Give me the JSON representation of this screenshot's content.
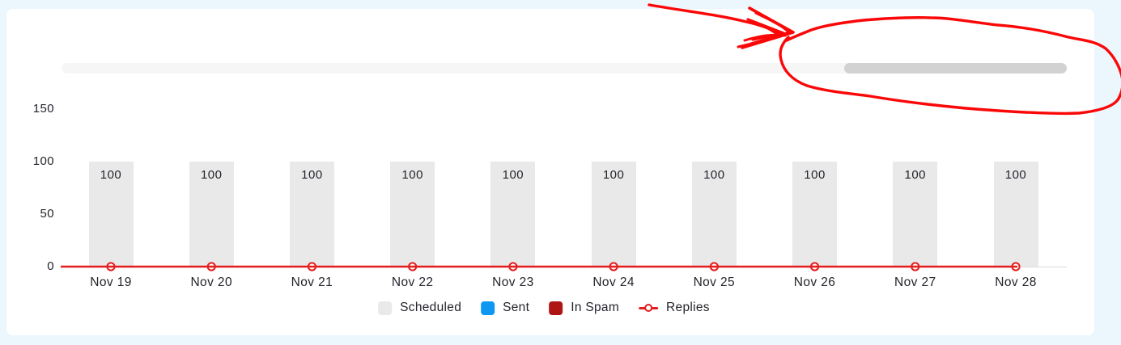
{
  "colors": {
    "page_bg": "#ecf6fd",
    "panel_bg": "#ffffff",
    "bar_fill": "#e9e9e9",
    "axis_line": "#dcdcdc",
    "text": "#23242c",
    "scroll_track": "#f6f6f6",
    "scroll_thumb": "#d2d2d2",
    "chart_red": "#e31e1e",
    "sent_blue": "#0e97f1",
    "in_spam_red": "#b01515",
    "annotation_red": "#fa0808"
  },
  "scrollbar": {
    "orientation": "horizontal",
    "thumb_position": "right"
  },
  "chart_data": {
    "type": "bar",
    "title": "",
    "xlabel": "",
    "ylabel": "",
    "categories": [
      "Nov 19",
      "Nov 20",
      "Nov 21",
      "Nov 22",
      "Nov 23",
      "Nov 24",
      "Nov 25",
      "Nov 26",
      "Nov 27",
      "Nov 28"
    ],
    "series": [
      {
        "name": "Scheduled",
        "type": "bar",
        "color": "#e9e9e9",
        "values": [
          100,
          100,
          100,
          100,
          100,
          100,
          100,
          100,
          100,
          100
        ]
      },
      {
        "name": "Sent",
        "type": "bar",
        "color": "#0e97f1",
        "values": [
          0,
          0,
          0,
          0,
          0,
          0,
          0,
          0,
          0,
          0
        ]
      },
      {
        "name": "In Spam",
        "type": "bar",
        "color": "#b01515",
        "values": [
          0,
          0,
          0,
          0,
          0,
          0,
          0,
          0,
          0,
          0
        ]
      },
      {
        "name": "Replies",
        "type": "line",
        "color": "#e31e1e",
        "values": [
          0,
          0,
          0,
          0,
          0,
          0,
          0,
          0,
          0,
          0
        ]
      }
    ],
    "bar_value_labels": [
      "100",
      "100",
      "100",
      "100",
      "100",
      "100",
      "100",
      "100",
      "100",
      "100"
    ],
    "yticks": [
      0,
      50,
      100,
      150
    ],
    "ylim": [
      0,
      150
    ],
    "grid": false,
    "legend_position": "bottom"
  },
  "legend": {
    "items": [
      {
        "label": "Scheduled",
        "swatch": "square",
        "color": "#e9e9e9"
      },
      {
        "label": "Sent",
        "swatch": "square",
        "color": "#0e97f1"
      },
      {
        "label": "In Spam",
        "swatch": "square",
        "color": "#b01515"
      },
      {
        "label": "Replies",
        "swatch": "line-marker",
        "color": "#e31e1e"
      }
    ]
  },
  "annotation": {
    "kind": "hand-drawn red arrow pointing to circled scrollbar thumb",
    "color": "#fa0808",
    "target": "scrollbar-thumb"
  }
}
